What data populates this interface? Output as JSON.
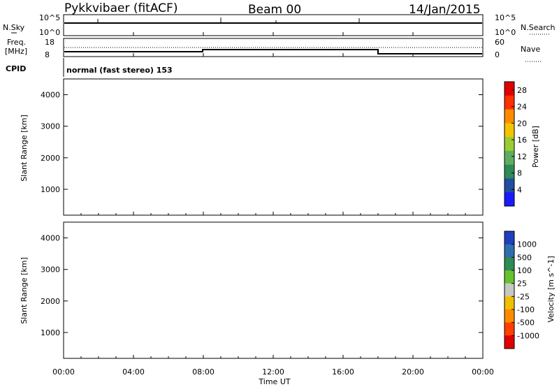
{
  "header": {
    "station": "Pykkvibaer (fitACF)",
    "beam": "Beam 00",
    "date": "14/Jan/2015"
  },
  "noise_panel": {
    "left_label": "N.Sky",
    "right_label": "N.Search",
    "left_ticks": [
      "10^5",
      "10^0"
    ],
    "right_ticks": [
      "10^5",
      "10^0"
    ]
  },
  "freq_panel": {
    "left_label_1": "Freq.",
    "left_label_2": "[MHz]",
    "left_ticks": [
      "18",
      "8"
    ],
    "right_label": "Nave",
    "right_ticks": [
      "60",
      "0"
    ]
  },
  "cpid": {
    "label": "CPID",
    "text": "normal (fast stereo) 153"
  },
  "x_axis": {
    "label": "Time UT",
    "ticks": [
      "00:00",
      "04:00",
      "08:00",
      "12:00",
      "16:00",
      "20:00",
      "00:00"
    ]
  },
  "chart_data": [
    {
      "type": "heatmap",
      "title": "",
      "xlabel": "Time UT",
      "ylabel": "Slant Range [km]",
      "xlim": [
        0,
        24
      ],
      "ylim": [
        180,
        4500
      ],
      "yticks": [
        "1000",
        "2000",
        "3000",
        "4000"
      ],
      "colorbar_label": "Power [dB]",
      "colorbar_ticks": [
        "4",
        "8",
        "12",
        "16",
        "20",
        "24",
        "28"
      ],
      "colorbar_range": [
        0,
        30
      ],
      "colors": [
        "#1a1aff",
        "#1f4fa0",
        "#2e8b57",
        "#5fae5f",
        "#9acd32",
        "#f5c400",
        "#ff8c00",
        "#ff3000",
        "#e00000"
      ]
    },
    {
      "type": "heatmap",
      "title": "",
      "xlabel": "Time UT",
      "ylabel": "Slant Range [km]",
      "xlim": [
        0,
        24
      ],
      "ylim": [
        180,
        4500
      ],
      "yticks": [
        "1000",
        "2000",
        "3000",
        "4000"
      ],
      "colorbar_label": "Velocity [m s^-1]",
      "colorbar_ticks": [
        "1000",
        "500",
        "100",
        "25",
        "-25",
        "-100",
        "-500",
        "-1000"
      ],
      "colors": [
        "#1f3fbf",
        "#2e6db0",
        "#2e8b57",
        "#66c22e",
        "#c8c8c0",
        "#f0c000",
        "#ff8c00",
        "#ff4000",
        "#e00000"
      ]
    }
  ]
}
